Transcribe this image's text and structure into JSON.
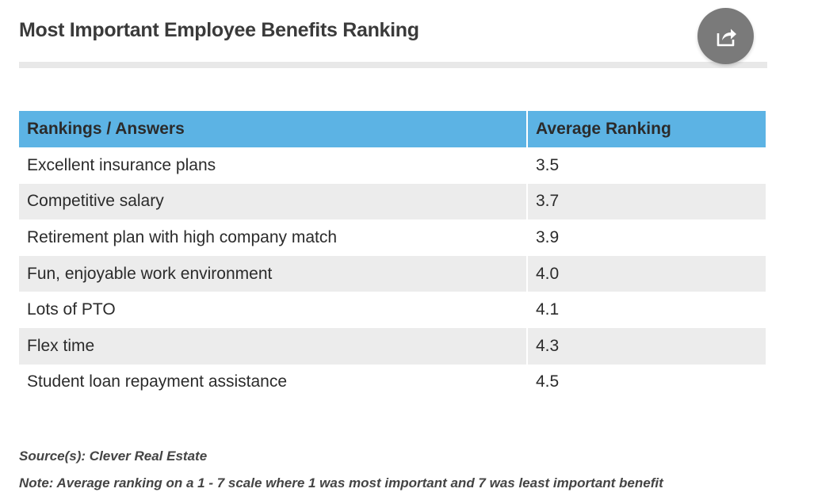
{
  "chart_data": {
    "type": "table",
    "title": "Most Important Employee Benefits Ranking",
    "columns": [
      "Rankings / Answers",
      "Average Ranking"
    ],
    "rows": [
      {
        "answer": "Excellent insurance plans",
        "value": "3.5"
      },
      {
        "answer": "Competitive salary",
        "value": "3.7"
      },
      {
        "answer": "Retirement plan with high company match",
        "value": "3.9"
      },
      {
        "answer": "Fun, enjoyable work environment",
        "value": "4.0"
      },
      {
        "answer": "Lots of PTO",
        "value": "4.1"
      },
      {
        "answer": "Flex time",
        "value": "4.3"
      },
      {
        "answer": "Student loan repayment assistance",
        "value": "4.5"
      }
    ]
  },
  "footer": {
    "source": "Source(s): Clever Real Estate",
    "note": "Note: Average ranking on a 1 - 7 scale where 1 was most important and 7 was least important benefit"
  },
  "colors": {
    "header_bg": "#5cb3e4",
    "stripe_bg": "#ececec",
    "share_button_bg": "#7a7a7a"
  },
  "icons": {
    "share": "share-icon"
  }
}
